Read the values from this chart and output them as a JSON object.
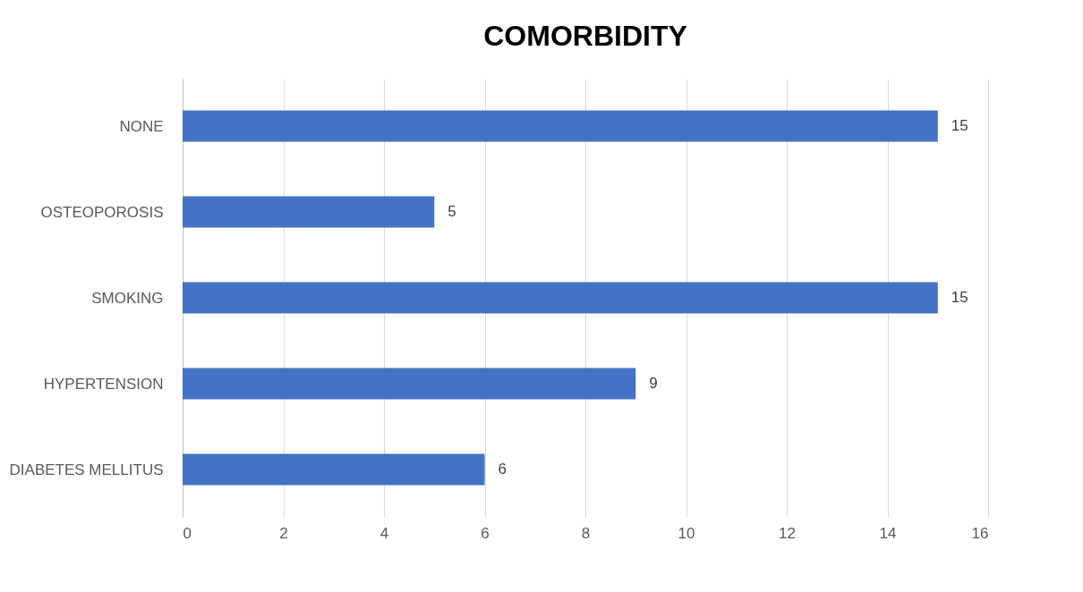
{
  "chart_data": {
    "type": "bar",
    "orientation": "horizontal",
    "title": "COMORBIDITY",
    "categories": [
      "NONE",
      "OSTEOPOROSIS",
      "SMOKING",
      "HYPERTENSION",
      "DIABETES MELLITUS"
    ],
    "values": [
      15,
      5,
      15,
      9,
      6
    ],
    "color": "#4472c4",
    "xlim": [
      0,
      16
    ],
    "xticks": [
      0,
      2,
      4,
      6,
      8,
      10,
      12,
      14,
      16
    ],
    "grid": "x",
    "data_labels": true
  }
}
